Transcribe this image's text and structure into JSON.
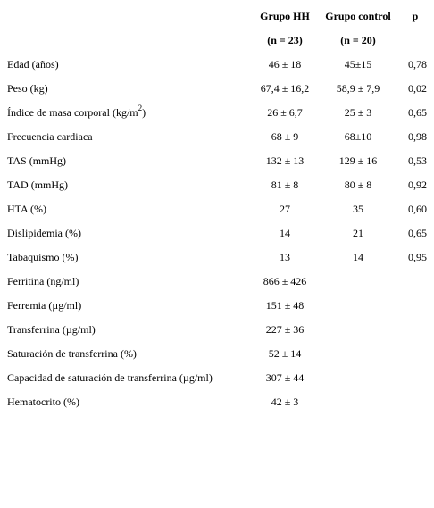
{
  "table": {
    "header": [
      [
        "Grupo HH",
        "Grupo control",
        "p"
      ],
      [
        "(n = 23)",
        "(n = 20)"
      ]
    ],
    "rows": [
      [
        "Edad (años)",
        "46 ± 18",
        "45±15",
        "0,78"
      ],
      [
        "Peso (kg)",
        "67,4 ± 16,2",
        "58,9 ± 7,9",
        "0,02"
      ],
      [
        [
          "Índice de masa corporal (kg/m",
          "2",
          ")"
        ],
        "26 ± 6,7",
        "25 ± 3",
        "0,65"
      ],
      [
        "Frecuencia cardiaca",
        "68 ± 9",
        "68±10",
        "0,98"
      ],
      [
        "TAS (mmHg)",
        "132 ± 13",
        "129 ± 16",
        "0,53"
      ],
      [
        "TAD (mmHg)",
        "81 ± 8",
        "80 ± 8",
        "0,92"
      ],
      [
        "HTA (%)",
        "27",
        "35",
        "0,60"
      ],
      [
        "Dislipidemia (%)",
        "14",
        "21",
        "0,65"
      ],
      [
        "Tabaquismo (%)",
        "13",
        "14",
        "0,95"
      ],
      [
        "Ferritina (ng/ml)",
        "866 ± 426"
      ],
      [
        "Ferremia (µg/ml)",
        "151 ± 48"
      ],
      [
        "Transferrina (µg/ml)",
        "227 ± 36"
      ],
      [
        "Saturación de transferrina (%)",
        "52 ± 14"
      ],
      [
        "Capacidad de saturación de transferrina (µg/ml)",
        "307 ± 44"
      ],
      [
        "Hematocrito (%)",
        "42 ± 3"
      ]
    ]
  }
}
